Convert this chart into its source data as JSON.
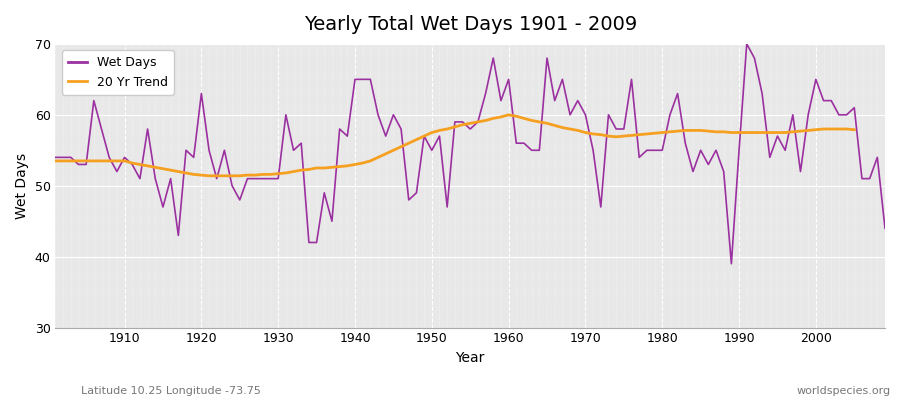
{
  "title": "Yearly Total Wet Days 1901 - 2009",
  "xlabel": "Year",
  "ylabel": "Wet Days",
  "subtitle_left": "Latitude 10.25 Longitude -73.75",
  "subtitle_right": "worldspecies.org",
  "ylim": [
    30,
    70
  ],
  "yticks": [
    30,
    40,
    50,
    60,
    70
  ],
  "xlim": [
    1901,
    2009
  ],
  "fig_bg_color": "#ffffff",
  "plot_bg_color": "#e8e8e8",
  "wet_days_color": "#9b30a0",
  "trend_color": "#f5a020",
  "wet_days": [
    54,
    54,
    54,
    53,
    53,
    62,
    58,
    54,
    52,
    54,
    53,
    51,
    58,
    51,
    47,
    51,
    43,
    55,
    54,
    63,
    55,
    51,
    55,
    50,
    48,
    51,
    51,
    51,
    51,
    51,
    60,
    55,
    56,
    42,
    42,
    49,
    45,
    58,
    57,
    65,
    65,
    65,
    60,
    57,
    60,
    58,
    48,
    49,
    57,
    55,
    57,
    47,
    59,
    59,
    58,
    59,
    63,
    68,
    62,
    65,
    56,
    56,
    55,
    55,
    68,
    62,
    65,
    60,
    62,
    60,
    55,
    47,
    60,
    58,
    58,
    65,
    54,
    55,
    55,
    55,
    60,
    63,
    56,
    52,
    55,
    53,
    55,
    52,
    39,
    55,
    70,
    68,
    63,
    54,
    57,
    55,
    60,
    52,
    60,
    65,
    62,
    62,
    60,
    60,
    61,
    51,
    51,
    54,
    44
  ],
  "trend": [
    53.5,
    53.5,
    53.5,
    53.5,
    53.5,
    53.5,
    53.5,
    53.5,
    53.5,
    53.5,
    53.2,
    53.0,
    52.8,
    52.6,
    52.4,
    52.2,
    52.0,
    51.8,
    51.6,
    51.5,
    51.4,
    51.4,
    51.4,
    51.4,
    51.4,
    51.5,
    51.5,
    51.6,
    51.6,
    51.7,
    51.8,
    52.0,
    52.2,
    52.3,
    52.5,
    52.5,
    52.6,
    52.7,
    52.8,
    53.0,
    53.2,
    53.5,
    54.0,
    54.5,
    55.0,
    55.5,
    56.0,
    56.5,
    57.0,
    57.5,
    57.8,
    58.0,
    58.3,
    58.6,
    58.8,
    59.0,
    59.2,
    59.5,
    59.7,
    60.0,
    59.8,
    59.5,
    59.2,
    59.0,
    58.8,
    58.5,
    58.2,
    58.0,
    57.8,
    57.5,
    57.3,
    57.2,
    57.0,
    56.9,
    57.0,
    57.1,
    57.2,
    57.3,
    57.4,
    57.5,
    57.6,
    57.7,
    57.8,
    57.8,
    57.8,
    57.7,
    57.6,
    57.6,
    57.5,
    57.5,
    57.5,
    57.5,
    57.5,
    57.5,
    57.5,
    57.5,
    57.6,
    57.7,
    57.8,
    57.9,
    58.0,
    58.0,
    58.0,
    58.0,
    57.9,
    null,
    null,
    null,
    null
  ]
}
